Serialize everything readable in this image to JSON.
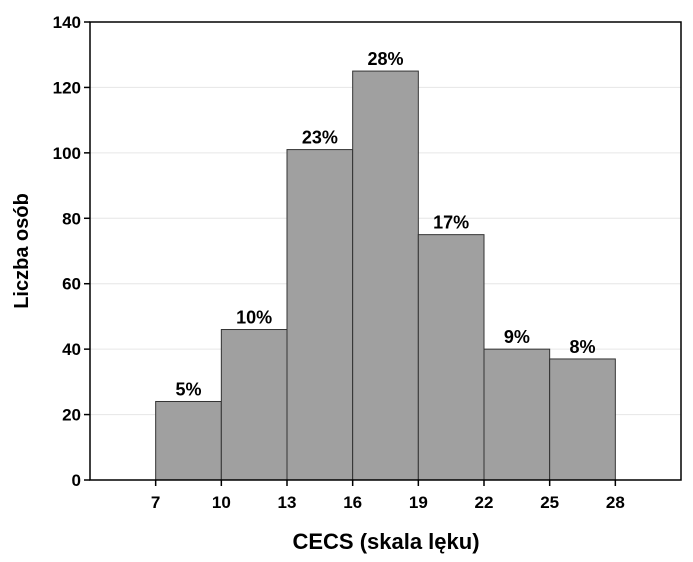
{
  "chart_data": {
    "type": "bar",
    "title": "",
    "xlabel": "CECS (skala lęku)",
    "ylabel": "Liczba osób",
    "x_ticks": [
      "7",
      "10",
      "13",
      "16",
      "19",
      "22",
      "25",
      "28"
    ],
    "bin_edges": [
      7,
      10,
      13,
      16,
      19,
      22,
      25,
      28
    ],
    "x_range": [
      4,
      31
    ],
    "ylim": [
      0,
      140
    ],
    "y_ticks": [
      0,
      20,
      40,
      60,
      80,
      100,
      120,
      140
    ],
    "values": [
      24,
      46,
      101,
      125,
      75,
      40,
      37
    ],
    "data_labels": [
      "5%",
      "10%",
      "23%",
      "28%",
      "17%",
      "9%",
      "8%"
    ],
    "bar_color": "#a0a0a0",
    "bar_edge_color": "#333333",
    "grid": true,
    "legend": "none"
  }
}
